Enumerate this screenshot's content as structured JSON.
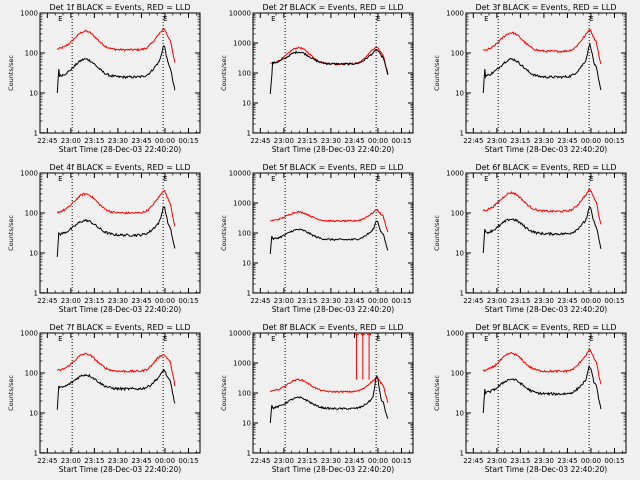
{
  "chart_data": {
    "type": "line",
    "layout": "3x3 grid",
    "common": {
      "xlabel": "Start Time (28-Dec-03 22:40:20)",
      "ylabel": "Counts/sec",
      "yscale": "log",
      "x_tick_labels": [
        "22:45",
        "23:00",
        "23:15",
        "23:30",
        "23:45",
        "00:00",
        "00:15"
      ],
      "x_tick_minutes": [
        4.67,
        19.67,
        34.67,
        49.67,
        64.67,
        79.67,
        94.67
      ],
      "xlim_minutes": [
        0,
        102
      ],
      "series_names": [
        "Events (black)",
        "LLD (red)"
      ],
      "series_colors": {
        "events": "#000000",
        "lld": "#ff0000"
      },
      "eclipse_markers": [
        "E",
        "E"
      ],
      "eclipse_marker_minutes": [
        20.5,
        78.5
      ],
      "data_start_minute": 11,
      "data_end_minute": 86
    },
    "panels": [
      {
        "title": "Det 1f BLACK = Events, RED = LLD",
        "ylim": [
          1,
          1000
        ],
        "y_tick_labels": [
          "1",
          "10",
          "100",
          "1000"
        ],
        "events": {
          "base": 25,
          "orbit_peak": 70,
          "flare_peak": 170,
          "start": 10
        },
        "lld": {
          "base": 120,
          "orbit_peak": 350,
          "flare_peak": 450
        }
      },
      {
        "title": "Det 2f BLACK = Events, RED = LLD",
        "ylim": [
          1,
          10000
        ],
        "y_tick_labels": [
          "1",
          "10",
          "100",
          "1000",
          "10000"
        ],
        "events": {
          "base": 200,
          "orbit_peak": 500,
          "flare_peak": 650,
          "start": 20
        },
        "lld": {
          "base": 200,
          "orbit_peak": 700,
          "flare_peak": 800
        }
      },
      {
        "title": "Det 3f BLACK = Events, RED = LLD",
        "ylim": [
          1,
          1000
        ],
        "y_tick_labels": [
          "1",
          "10",
          "100",
          "1000"
        ],
        "events": {
          "base": 25,
          "orbit_peak": 70,
          "flare_peak": 180,
          "start": 10
        },
        "lld": {
          "base": 110,
          "orbit_peak": 320,
          "flare_peak": 430
        }
      },
      {
        "title": "Det 4f BLACK = Events, RED = LLD",
        "ylim": [
          1,
          1000
        ],
        "y_tick_labels": [
          "1",
          "10",
          "100",
          "1000"
        ],
        "events": {
          "base": 28,
          "orbit_peak": 65,
          "flare_peak": 160,
          "start": 8
        },
        "lld": {
          "base": 100,
          "orbit_peak": 300,
          "flare_peak": 420
        }
      },
      {
        "title": "Det 5f BLACK = Events, RED = LLD",
        "ylim": [
          1,
          10000
        ],
        "y_tick_labels": [
          "1",
          "10",
          "100",
          "1000",
          "10000"
        ],
        "events": {
          "base": 60,
          "orbit_peak": 130,
          "flare_peak": 280,
          "start": 20
        },
        "lld": {
          "base": 250,
          "orbit_peak": 500,
          "flare_peak": 650
        }
      },
      {
        "title": "Det 6f BLACK = Events, RED = LLD",
        "ylim": [
          1,
          1000
        ],
        "y_tick_labels": [
          "1",
          "10",
          "100",
          "1000"
        ],
        "events": {
          "base": 30,
          "orbit_peak": 70,
          "flare_peak": 150,
          "start": 10
        },
        "lld": {
          "base": 110,
          "orbit_peak": 320,
          "flare_peak": 430
        }
      },
      {
        "title": "Det 7f BLACK = Events, RED = LLD",
        "ylim": [
          1,
          1000
        ],
        "y_tick_labels": [
          "1",
          "10",
          "100",
          "1000"
        ],
        "events": {
          "base": 40,
          "orbit_peak": 90,
          "flare_peak": 130,
          "start": 12
        },
        "lld": {
          "base": 110,
          "orbit_peak": 300,
          "flare_peak": 320
        }
      },
      {
        "title": "Det 8f BLACK = Events, RED = LLD",
        "ylim": [
          1,
          10000
        ],
        "y_tick_labels": [
          "1",
          "10",
          "100",
          "1000",
          "10000"
        ],
        "events": {
          "base": 30,
          "orbit_peak": 70,
          "flare_peak": 400,
          "start": 10
        },
        "lld": {
          "base": 110,
          "orbit_peak": 280,
          "flare_peak": 350,
          "spikes": [
            66,
            70,
            74
          ],
          "spike_value": 9000
        }
      },
      {
        "title": "Det 9f BLACK = Events, RED = LLD",
        "ylim": [
          1,
          1000
        ],
        "y_tick_labels": [
          "1",
          "10",
          "100",
          "1000"
        ],
        "events": {
          "base": 30,
          "orbit_peak": 70,
          "flare_peak": 160,
          "start": 10
        },
        "lld": {
          "base": 110,
          "orbit_peak": 310,
          "flare_peak": 420
        }
      }
    ]
  }
}
